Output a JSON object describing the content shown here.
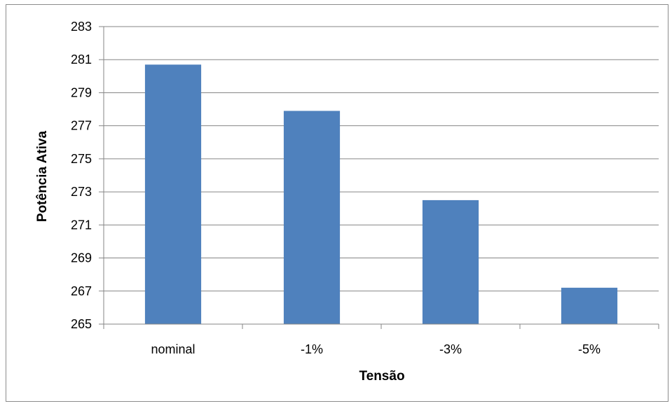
{
  "chart_data": {
    "type": "bar",
    "title": "",
    "xlabel": "Tensão",
    "ylabel": "Potência Ativa",
    "categories": [
      "nominal",
      "-1%",
      "-3%",
      "-5%"
    ],
    "values": [
      280.7,
      277.9,
      272.5,
      267.2
    ],
    "ylim": [
      265,
      283
    ],
    "yticks": [
      265,
      267,
      269,
      271,
      273,
      275,
      277,
      279,
      281,
      283
    ],
    "grid": true,
    "legend": "none",
    "bar_color": "#4f81bd",
    "grid_color": "#868686"
  }
}
